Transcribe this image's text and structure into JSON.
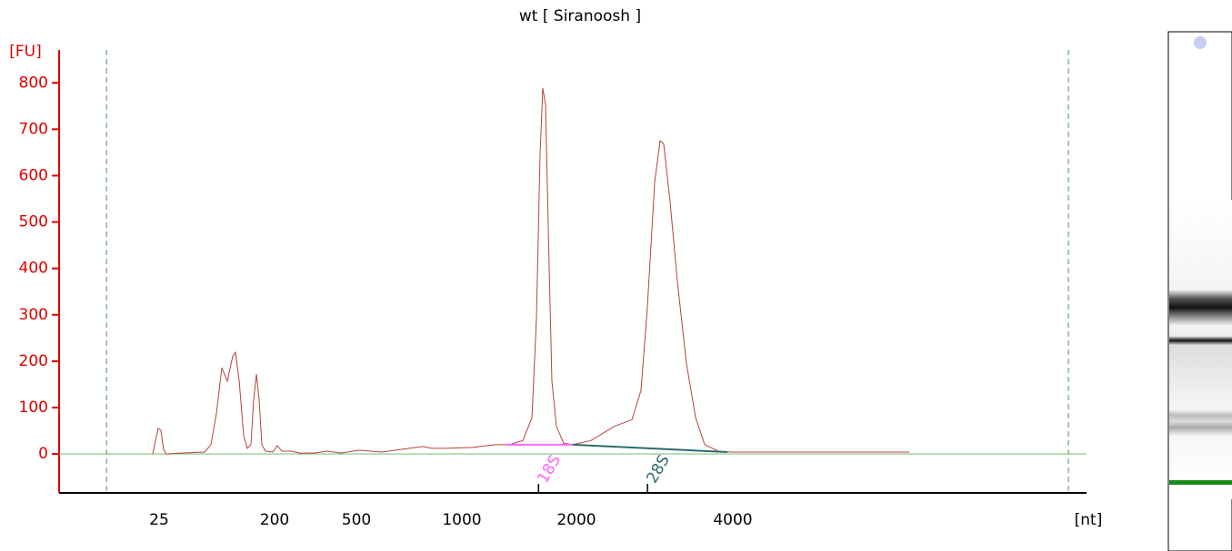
{
  "chart_data": {
    "type": "line",
    "title": "wt  [ Siranoosh ]",
    "y_label": "[FU]",
    "x_label": "[nt]",
    "x": [
      22.3,
      23.4,
      24.6,
      25.8,
      27.1,
      28.5,
      36.4,
      56.7,
      63.6,
      70.2,
      77.4,
      85.4,
      94.2,
      98.9,
      105.7,
      114.6,
      122.4,
      130.7,
      137.3,
      144.2,
      151.5,
      159.1,
      169.8,
      193.6,
      206.2,
      217,
      240,
      266,
      310,
      361,
      421,
      509,
      591,
      773,
      821,
      898,
      1068,
      1226,
      1331,
      1446,
      1528,
      1570,
      1605,
      1632,
      1659,
      1686,
      1724,
      1772,
      1852,
      1957,
      2133,
      2360,
      2558,
      2662,
      2738,
      2829,
      2898,
      2944,
      3027,
      3128,
      3256,
      3392,
      3532,
      3750,
      3983,
      8741
    ],
    "values": [
      0,
      29,
      55,
      51,
      10,
      0,
      2,
      4,
      20,
      88,
      186,
      157,
      211,
      219,
      157,
      39,
      12,
      20,
      117,
      172,
      117,
      20,
      6,
      4,
      18,
      6,
      6,
      2,
      2,
      6,
      2,
      8,
      4,
      16,
      12,
      12,
      14,
      20,
      20,
      29,
      78,
      293,
      646,
      789,
      753,
      489,
      157,
      59,
      23,
      20,
      29,
      59,
      74,
      137,
      313,
      587,
      675,
      669,
      548,
      372,
      196,
      78,
      20,
      6,
      4,
      4
    ],
    "color": "#b5423a",
    "baseline_color": "#7fc47f",
    "axis_color": "#e00000",
    "xlim": [
      4.13,
      19170
    ],
    "xticks": [
      25,
      200,
      500,
      1000,
      2000,
      4000
    ],
    "ylim": [
      -84,
      871
    ],
    "yticks": [
      0,
      100,
      200,
      300,
      400,
      500,
      600,
      700,
      800
    ],
    "markers": [
      9.7,
      17690
    ],
    "peaks": [
      {
        "name": "18S",
        "color": "#ff66ff",
        "x": [
          1310,
          1957
        ],
        "y": [
          20,
          20
        ],
        "peak_x": 1590
      },
      {
        "name": "28S",
        "color": "#2e6b6b",
        "x": [
          1957,
          3904
        ],
        "y": [
          20,
          4
        ],
        "peak_x": 2740
      }
    ]
  }
}
